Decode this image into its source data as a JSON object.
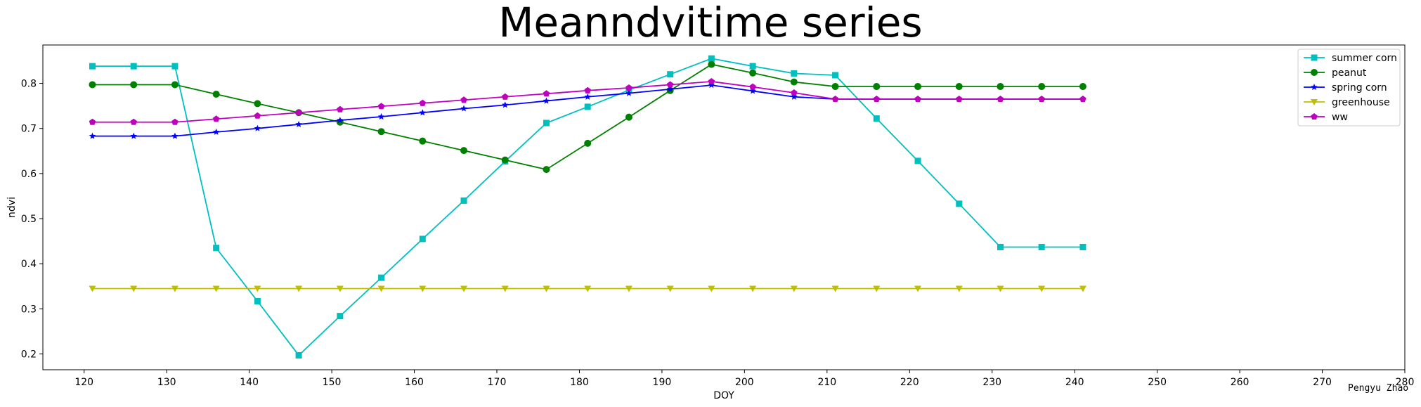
{
  "chart_data": {
    "type": "line",
    "title": "Meanndvitime series",
    "xlabel": "DOY",
    "ylabel": "ndvi",
    "xlim": [
      115,
      280
    ],
    "ylim": [
      0.165,
      0.885
    ],
    "xticks": [
      120,
      130,
      140,
      150,
      160,
      170,
      180,
      190,
      200,
      210,
      220,
      230,
      240,
      250,
      260,
      270,
      280
    ],
    "yticks": [
      0.2,
      0.3,
      0.4,
      0.5,
      0.6,
      0.7,
      0.8
    ],
    "legend_position": "top-right",
    "x": [
      121,
      126,
      131,
      136,
      141,
      146,
      151,
      156,
      161,
      166,
      171,
      176,
      181,
      186,
      191,
      196,
      201,
      206,
      211,
      216,
      221,
      226,
      231,
      236,
      241
    ],
    "series": [
      {
        "name": "summer corn",
        "color": "#00bfbf",
        "marker": "square",
        "values": [
          0.838,
          0.838,
          0.838,
          0.435,
          0.317,
          0.197,
          0.284,
          0.369,
          0.455,
          0.54,
          0.627,
          0.712,
          0.748,
          0.785,
          0.82,
          0.855,
          0.838,
          0.822,
          0.818,
          0.722,
          0.628,
          0.533,
          0.437,
          0.437,
          0.437
        ]
      },
      {
        "name": "peanut",
        "color": "#008000",
        "marker": "circle",
        "values": [
          0.797,
          0.797,
          0.797,
          0.776,
          0.755,
          0.735,
          0.714,
          0.693,
          0.672,
          0.651,
          0.63,
          0.609,
          0.667,
          0.725,
          0.784,
          0.842,
          0.823,
          0.803,
          0.793,
          0.793,
          0.793,
          0.793,
          0.793,
          0.793,
          0.793
        ]
      },
      {
        "name": "spring corn",
        "color": "#0000ff",
        "marker": "star",
        "values": [
          0.683,
          0.683,
          0.683,
          0.692,
          0.7,
          0.709,
          0.718,
          0.726,
          0.735,
          0.744,
          0.752,
          0.761,
          0.77,
          0.778,
          0.787,
          0.796,
          0.783,
          0.77,
          0.765,
          0.765,
          0.765,
          0.765,
          0.765,
          0.765,
          0.765
        ]
      },
      {
        "name": "greenhouse",
        "color": "#bfbf00",
        "marker": "triangle-down",
        "values": [
          0.345,
          0.345,
          0.345,
          0.345,
          0.345,
          0.345,
          0.345,
          0.345,
          0.345,
          0.345,
          0.345,
          0.345,
          0.345,
          0.345,
          0.345,
          0.345,
          0.345,
          0.345,
          0.345,
          0.345,
          0.345,
          0.345,
          0.345,
          0.345,
          0.345
        ]
      },
      {
        "name": "ww",
        "color": "#bf00bf",
        "marker": "pentagon",
        "values": [
          0.714,
          0.714,
          0.714,
          0.721,
          0.728,
          0.735,
          0.742,
          0.749,
          0.756,
          0.763,
          0.77,
          0.777,
          0.784,
          0.79,
          0.797,
          0.804,
          0.792,
          0.779,
          0.765,
          0.765,
          0.765,
          0.765,
          0.765,
          0.765,
          0.765
        ]
      }
    ],
    "annotation": "Pengyu Zhao"
  }
}
